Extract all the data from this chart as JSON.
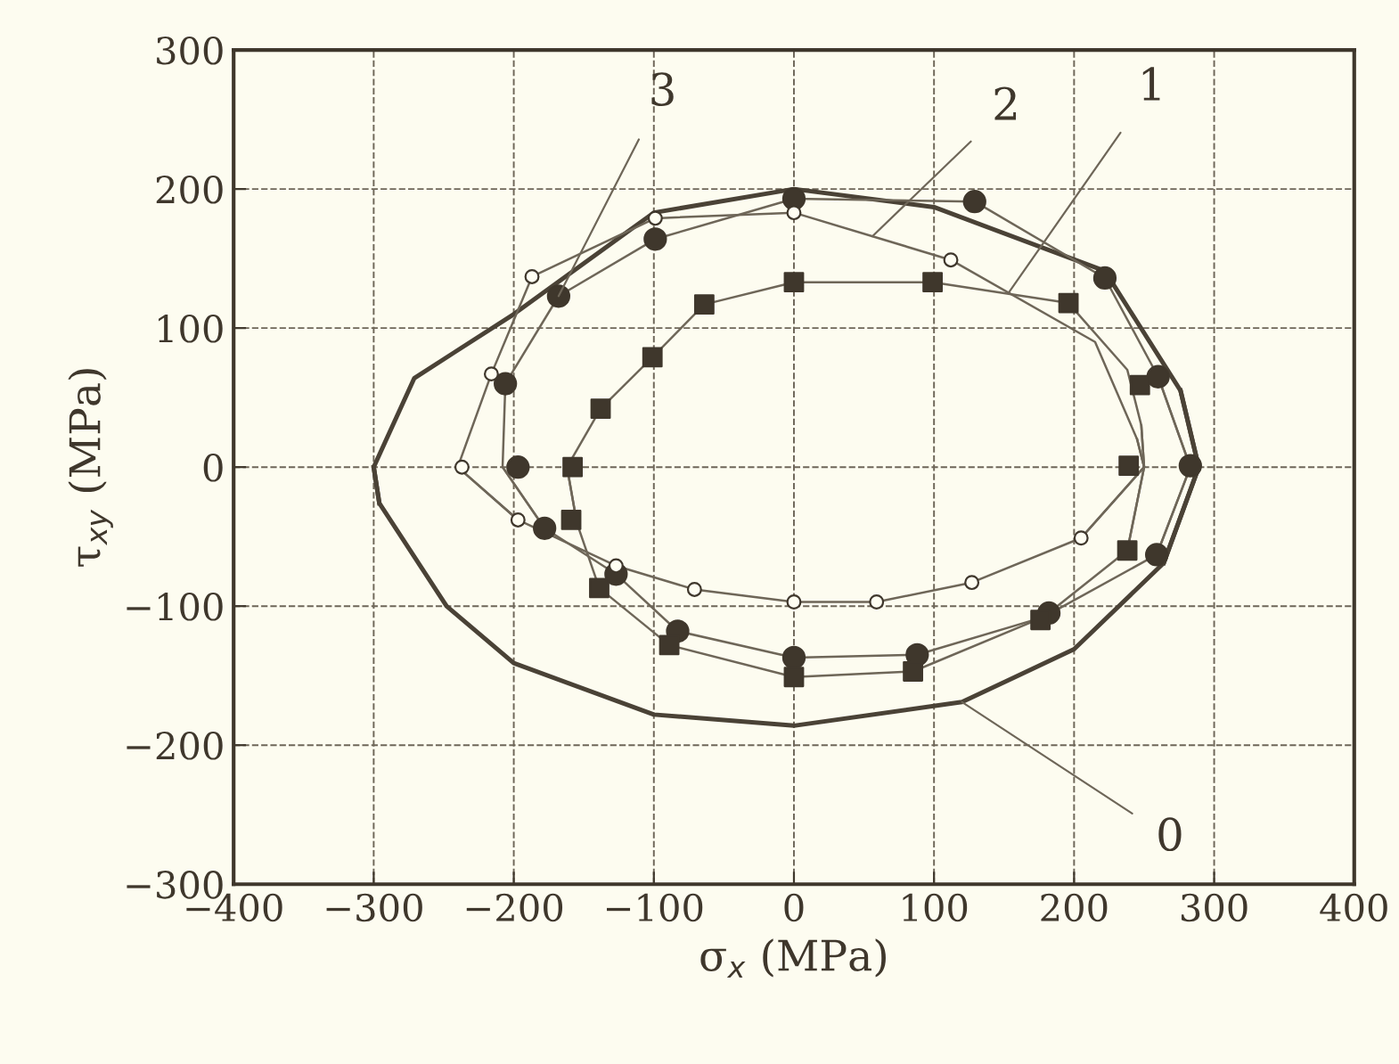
{
  "chart_data": {
    "type": "scatter",
    "xlabel": "σ$_{x}$ (MPa)",
    "ylabel": "τ$_{xy}$ (MPa)",
    "xlim": [
      -400,
      400
    ],
    "xticks": [
      -400,
      -300,
      -200,
      -100,
      0,
      100,
      200,
      300,
      400
    ],
    "ylim": [
      -300,
      300
    ],
    "yticks": [
      -300,
      -200,
      -100,
      0,
      100,
      200,
      300
    ],
    "grid": true,
    "series": [
      {
        "type": "line",
        "marker": "none",
        "color": "#4a4236",
        "x": [
          -296,
          -300,
          -271,
          -200,
          -100,
          0,
          100,
          222,
          276,
          289,
          264
        ],
        "values": [
          -26,
          0,
          64,
          110,
          183,
          200,
          187,
          141,
          55,
          0,
          -69
        ]
      },
      {
        "type": "line",
        "marker": "none",
        "color": "#4a4236",
        "x": [
          -300,
          -296,
          -248,
          -200,
          -100,
          0,
          120,
          200,
          264,
          289,
          276
        ],
        "values": [
          0,
          -26,
          -100,
          -141,
          -178,
          -186,
          -169,
          -131,
          -69,
          0,
          55
        ]
      },
      {
        "type": "line",
        "marker": "none",
        "color": "#6e6658",
        "x": [
          -155,
          -162,
          -138,
          -101,
          -64,
          0,
          99,
          196,
          238,
          248,
          250,
          238
        ],
        "values": [
          -40,
          0,
          42,
          79,
          117,
          133,
          133,
          118,
          70,
          30,
          0,
          -60
        ]
      },
      {
        "type": "line",
        "marker": "none",
        "color": "#6e6658",
        "x": [
          -162,
          -155,
          -139,
          -89,
          0,
          85,
          178,
          238,
          250,
          248
        ],
        "values": [
          0,
          -40,
          -87,
          -128,
          -151,
          -147,
          -108,
          -60,
          0,
          30
        ]
      },
      {
        "type": "line",
        "marker": "none",
        "color": "#6e6658",
        "x": [
          -197,
          -240,
          -216,
          -187,
          -99,
          0,
          112,
          215,
          245,
          250,
          205
        ],
        "values": [
          -38,
          0,
          67,
          137,
          179,
          183,
          149,
          90,
          20,
          0,
          -51
        ]
      },
      {
        "type": "line",
        "marker": "none",
        "color": "#6e6658",
        "x": [
          -240,
          -197,
          -127,
          -71,
          0,
          59,
          127,
          205,
          250,
          245
        ],
        "values": [
          0,
          -38,
          -71,
          -88,
          -97,
          -97,
          -83,
          -51,
          0,
          20
        ]
      },
      {
        "type": "line",
        "marker": "none",
        "color": "#6e6658",
        "x": [
          -178,
          -208,
          -206,
          -168,
          -99,
          0,
          129,
          222,
          260,
          283,
          259
        ],
        "values": [
          -44,
          0,
          60,
          123,
          164,
          193,
          191,
          136,
          65,
          0,
          -63
        ]
      },
      {
        "type": "line",
        "marker": "none",
        "color": "#6e6658",
        "x": [
          -208,
          -178,
          -127,
          -83,
          0,
          88,
          178,
          259,
          283,
          260
        ],
        "values": [
          0,
          -44,
          -77,
          -118,
          -137,
          -135,
          -108,
          -63,
          0,
          65
        ]
      },
      {
        "marker": "circle",
        "color": "#3f372c",
        "x": [
          283,
          260,
          222,
          129,
          0,
          -99,
          -168,
          -206,
          -197,
          -178,
          -127,
          -83,
          0,
          88,
          182,
          259
        ],
        "values": [
          1,
          65,
          136,
          191,
          193,
          164,
          123,
          60,
          0,
          -44,
          -77,
          -118,
          -137,
          -135,
          -105,
          -63
        ]
      },
      {
        "marker": "square",
        "color": "#3f372c",
        "x": [
          239,
          247,
          196,
          99,
          0,
          -64,
          -101,
          -138,
          -158,
          -159,
          -139,
          -89,
          0,
          85,
          176,
          238
        ],
        "values": [
          1,
          59,
          118,
          133,
          133,
          117,
          79,
          42,
          0,
          -38,
          -87,
          -128,
          -151,
          -147,
          -110,
          -60
        ]
      },
      {
        "marker": "circle",
        "color": "#fffef2",
        "x": [
          112,
          0,
          -99,
          -187,
          -216,
          -237,
          -197,
          -127,
          -71,
          0,
          59,
          127,
          205
        ],
        "values": [
          149,
          183,
          179,
          137,
          67,
          0,
          -38,
          -71,
          -88,
          -97,
          -97,
          -83,
          -51
        ]
      }
    ],
    "annotations": [
      {
        "text": "0",
        "x": 120,
        "y": -169
      },
      {
        "text": "1",
        "x": 153,
        "y": 125
      },
      {
        "text": "2",
        "x": 56,
        "y": 166
      },
      {
        "text": "3",
        "x": -168,
        "y": 123
      }
    ]
  }
}
